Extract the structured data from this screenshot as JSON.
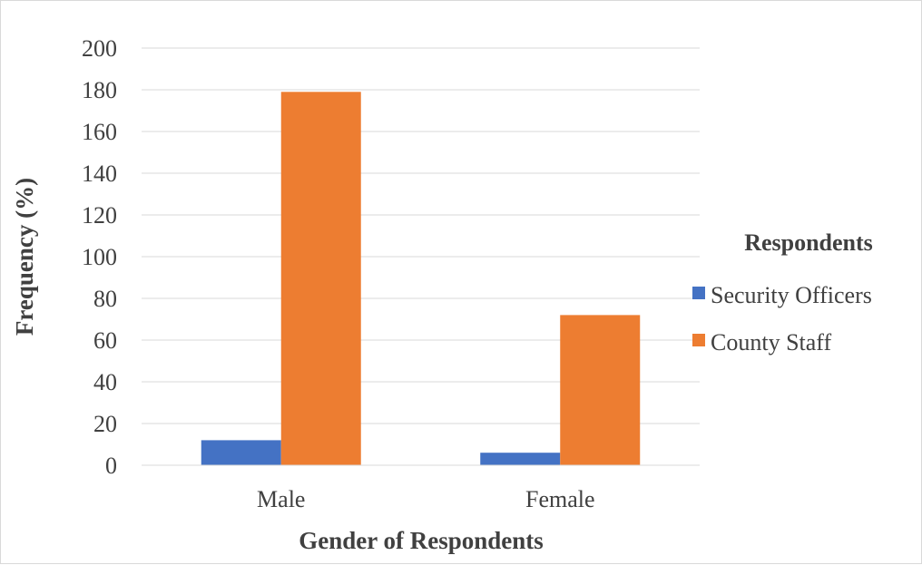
{
  "chart_data": {
    "type": "bar",
    "categories": [
      "Male",
      "Female"
    ],
    "series": [
      {
        "name": "Security Officers",
        "values": [
          12,
          6
        ],
        "color": "#4472C4"
      },
      {
        "name": "County Staff",
        "values": [
          179,
          72
        ],
        "color": "#ED7D31"
      }
    ],
    "xlabel": "Gender of Respondents",
    "ylabel": "Frequency (%)",
    "ylim": [
      0,
      200
    ],
    "yticks": [
      "0",
      "20",
      "40",
      "60",
      "80",
      "100",
      "120",
      "140",
      "160",
      "180",
      "200"
    ],
    "grid": true,
    "legend_title": "Respondents",
    "legend_position": "right"
  }
}
